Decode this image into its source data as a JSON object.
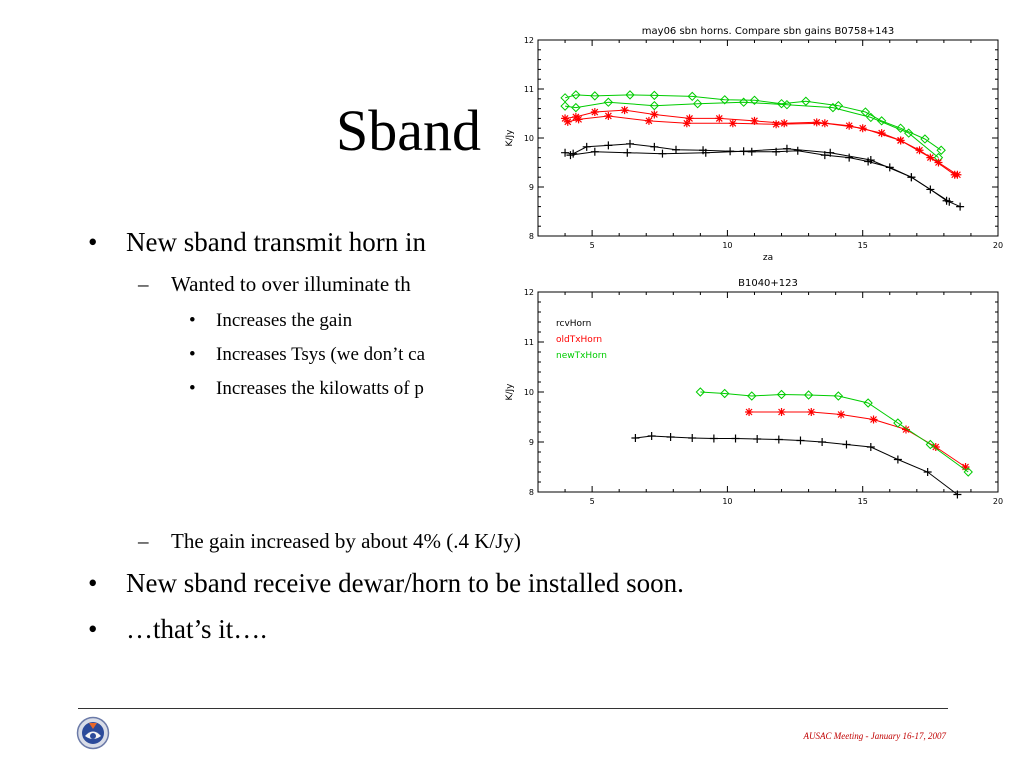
{
  "slide": {
    "title": "Sband",
    "bullets": [
      {
        "level": 1,
        "text": "New sband transmit horn in"
      },
      {
        "level": 2,
        "text": "Wanted to over illuminate th"
      },
      {
        "level": 3,
        "text": "Increases the gain"
      },
      {
        "level": 3,
        "text": "Increases Tsys (we don’t ca"
      },
      {
        "level": 3,
        "text": "Increases the kilowatts of p"
      },
      {
        "level": 2,
        "text": "The gain increased by about 4% (.4 K/Jy)"
      },
      {
        "level": 1,
        "text": "New sband receive dewar/horn to be installed soon."
      },
      {
        "level": 1,
        "text": "…that’s it…."
      }
    ],
    "bullet_symbol": "•",
    "dash_symbol": "–",
    "footer": "AUSAC Meeting - January 16-17, 2007",
    "colors": {
      "accent_footer": "#c00000",
      "rcv": "#000000",
      "oldTx": "#ff0000",
      "newTx": "#00cc00"
    }
  },
  "chart_data": [
    {
      "type": "line",
      "title": "may06 sbn horns. Compare sbn gains B0758+143",
      "xlabel": "za",
      "ylabel": "K/Jy",
      "xlim": [
        3,
        20
      ],
      "ylim": [
        8,
        12
      ],
      "xticks": [
        5,
        10,
        15,
        20
      ],
      "yticks": [
        8,
        9,
        10,
        11,
        12
      ],
      "grid": false,
      "series": [
        {
          "color": "#00cc00",
          "marker": "diamond",
          "x": [
            4.0,
            4.4,
            5.1,
            6.4,
            7.3,
            8.7,
            9.9,
            11.0,
            12.0,
            12.9,
            14.1,
            15.1,
            15.7,
            16.4,
            17.3,
            17.9
          ],
          "y": [
            10.82,
            10.88,
            10.86,
            10.88,
            10.87,
            10.85,
            10.78,
            10.77,
            10.7,
            10.75,
            10.66,
            10.53,
            10.35,
            10.2,
            9.98,
            9.75
          ]
        },
        {
          "color": "#00cc00",
          "marker": "diamond",
          "x": [
            4.0,
            4.4,
            5.6,
            7.3,
            8.9,
            10.6,
            12.2,
            13.9,
            15.3,
            16.7,
            17.8
          ],
          "y": [
            10.65,
            10.62,
            10.73,
            10.66,
            10.7,
            10.73,
            10.68,
            10.62,
            10.42,
            10.1,
            9.6
          ]
        },
        {
          "color": "#ff0000",
          "marker": "star",
          "x": [
            4.0,
            4.4,
            5.1,
            6.2,
            7.3,
            8.6,
            9.7,
            11.0,
            12.1,
            13.3,
            14.5,
            15.7,
            16.4,
            17.1,
            17.8,
            18.5
          ],
          "y": [
            10.4,
            10.43,
            10.53,
            10.57,
            10.48,
            10.4,
            10.4,
            10.35,
            10.3,
            10.32,
            10.25,
            10.1,
            9.95,
            9.75,
            9.5,
            9.25
          ]
        },
        {
          "color": "#ff0000",
          "marker": "star",
          "x": [
            4.1,
            4.5,
            5.6,
            7.1,
            8.5,
            10.2,
            11.8,
            13.6,
            15.0,
            16.4,
            17.5,
            18.4
          ],
          "y": [
            10.33,
            10.38,
            10.45,
            10.35,
            10.3,
            10.3,
            10.28,
            10.3,
            10.2,
            9.95,
            9.6,
            9.25
          ]
        },
        {
          "color": "#000000",
          "marker": "plus",
          "x": [
            4.0,
            4.3,
            4.8,
            5.6,
            6.4,
            7.3,
            8.1,
            9.1,
            10.1,
            10.9,
            11.8,
            12.6,
            13.6,
            14.5,
            15.2,
            16.0,
            16.8,
            17.5,
            18.1,
            18.6
          ],
          "y": [
            9.7,
            9.68,
            9.82,
            9.85,
            9.88,
            9.82,
            9.76,
            9.75,
            9.73,
            9.72,
            9.72,
            9.74,
            9.65,
            9.6,
            9.52,
            9.4,
            9.2,
            8.95,
            8.72,
            8.6
          ]
        },
        {
          "color": "#000000",
          "marker": "plus",
          "x": [
            4.2,
            5.1,
            6.3,
            7.6,
            9.2,
            10.6,
            12.2,
            13.8,
            15.3,
            16.8,
            18.2
          ],
          "y": [
            9.65,
            9.72,
            9.7,
            9.68,
            9.7,
            9.73,
            9.78,
            9.7,
            9.55,
            9.2,
            8.7
          ]
        }
      ]
    },
    {
      "type": "line",
      "title": "B1040+123",
      "xlabel": "",
      "ylabel": "K/Jy",
      "xlim": [
        3,
        20
      ],
      "ylim": [
        8,
        12
      ],
      "xticks": [
        5,
        10,
        15,
        20
      ],
      "yticks": [
        8,
        9,
        10,
        11,
        12
      ],
      "grid": false,
      "legend_position": "top-left",
      "series": [
        {
          "name": "rcvHorn",
          "color": "#000000",
          "marker": "plus",
          "x": [
            6.6,
            7.2,
            7.9,
            8.7,
            9.5,
            10.3,
            11.1,
            11.9,
            12.7,
            13.5,
            14.4,
            15.3,
            16.3,
            17.4,
            18.5
          ],
          "y": [
            9.08,
            9.12,
            9.1,
            9.08,
            9.07,
            9.07,
            9.06,
            9.05,
            9.03,
            9.0,
            8.95,
            8.9,
            8.65,
            8.4,
            7.95
          ]
        },
        {
          "name": "oldTxHorn",
          "color": "#ff0000",
          "marker": "star",
          "x": [
            10.8,
            12.0,
            13.1,
            14.2,
            15.4,
            16.6,
            17.7,
            18.8
          ],
          "y": [
            9.6,
            9.6,
            9.6,
            9.55,
            9.45,
            9.25,
            8.9,
            8.5
          ]
        },
        {
          "name": "newTxHorn",
          "color": "#00cc00",
          "marker": "diamond",
          "x": [
            9.0,
            9.9,
            10.9,
            12.0,
            13.0,
            14.1,
            15.2,
            16.3,
            17.5,
            18.9
          ],
          "y": [
            10.0,
            9.97,
            9.92,
            9.95,
            9.94,
            9.92,
            9.78,
            9.38,
            8.95,
            8.4
          ]
        }
      ]
    }
  ]
}
